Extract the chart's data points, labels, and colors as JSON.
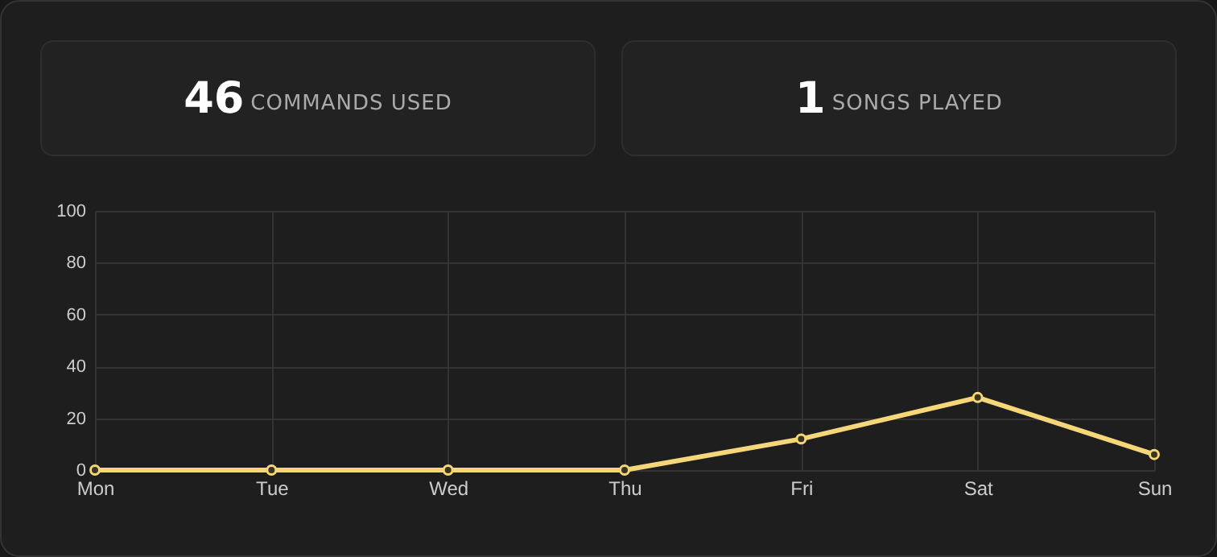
{
  "chart_data": [
    {
      "type": "other",
      "annotations": [
        "46",
        "COMMANDS USED"
      ]
    },
    {
      "type": "other",
      "annotations": [
        "1",
        "SONGS PLAYED"
      ]
    },
    {
      "type": "line",
      "categories": [
        "Mon",
        "Tue",
        "Wed",
        "Thu",
        "Fri",
        "Sat",
        "Sun"
      ],
      "series": [
        {
          "color": "#f5d77a",
          "values": [
            0,
            0,
            0,
            0,
            12,
            28,
            6
          ]
        }
      ],
      "ylim": [
        0,
        100
      ],
      "yticks": [
        0,
        20,
        40,
        60,
        80,
        100
      ],
      "grid": true,
      "marker": "circle",
      "line_style": "solid"
    }
  ]
}
